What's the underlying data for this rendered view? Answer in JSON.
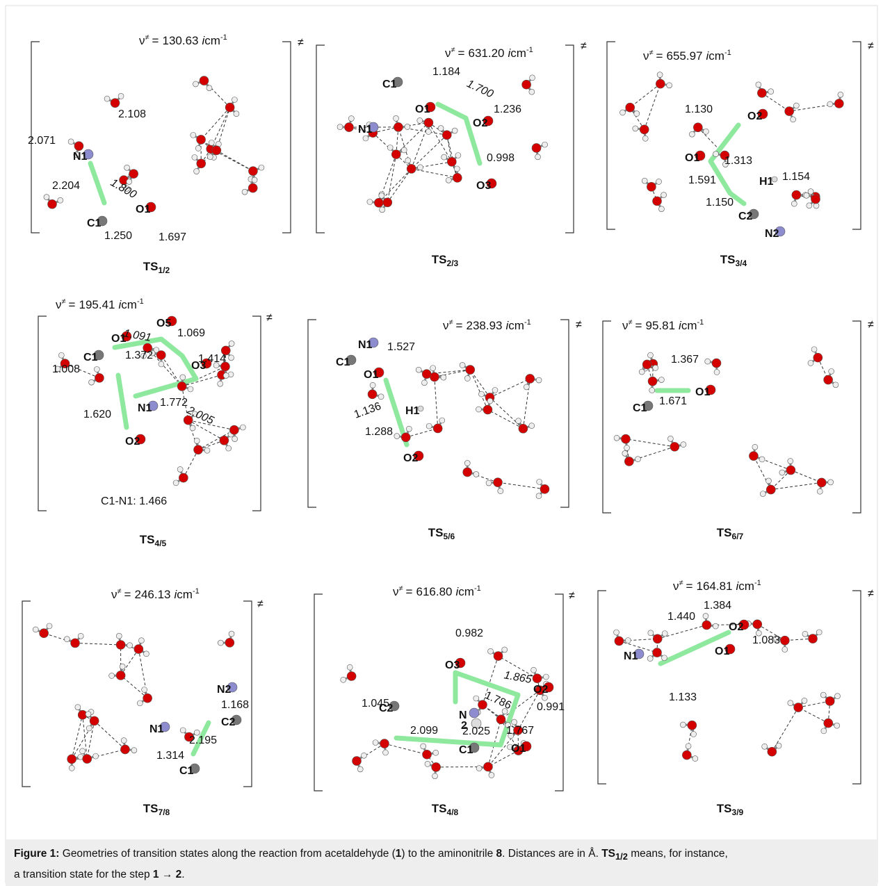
{
  "freq_symbol": "ν",
  "freq_sup": "≠",
  "freq_eq": "=",
  "freq_unit_i": "i",
  "freq_unit": "cm",
  "freq_exp": "-1",
  "ts_mark": "≠",
  "ts_prefix": "TS",
  "panels": [
    {
      "frequency": "130.63",
      "ts": "1/2",
      "atoms": [
        "N1",
        "O1",
        "C1"
      ],
      "distances": [
        "2.071",
        "2.108",
        "1.800",
        "2.204",
        "1.250",
        "1.697"
      ]
    },
    {
      "frequency": "631.20",
      "ts": "2/3",
      "atoms": [
        "C1",
        "O1",
        "N1",
        "O2",
        "O3"
      ],
      "distances": [
        "1.184",
        "1.700",
        "1.236",
        "0.998"
      ]
    },
    {
      "frequency": "655.97",
      "ts": "3/4",
      "atoms": [
        "O2",
        "O1",
        "H1",
        "C2",
        "N2"
      ],
      "distances": [
        "1.130",
        "1.313",
        "1.591",
        "1.154",
        "1.150"
      ]
    },
    {
      "frequency": "195.41",
      "ts": "4/5",
      "atoms": [
        "O5",
        "O1",
        "C1",
        "O3",
        "N1",
        "O2"
      ],
      "distances": [
        "1.091",
        "1.069",
        "1.372",
        "1.414",
        "1.008",
        "1.772",
        "2.005",
        "1.620",
        "C1-N1: 1.466"
      ]
    },
    {
      "frequency": "238.93",
      "ts": "5/6",
      "atoms": [
        "N1",
        "C1",
        "O1",
        "H1",
        "O2"
      ],
      "distances": [
        "1.527",
        "1.136",
        "1.288"
      ]
    },
    {
      "frequency": "95.81",
      "ts": "6/7",
      "atoms": [
        "O1",
        "C1"
      ],
      "distances": [
        "1.367",
        "1.671"
      ]
    },
    {
      "frequency": "246.13",
      "ts": "7/8",
      "atoms": [
        "N2",
        "C2",
        "N1",
        "C1"
      ],
      "distances": [
        "1.168",
        "2.195",
        "1.314"
      ]
    },
    {
      "frequency": "616.80",
      "ts": "4/8",
      "atoms": [
        "O3",
        "O2",
        "N",
        "2",
        "C2",
        "C1",
        "O1"
      ],
      "distances": [
        "0.982",
        "1.865",
        "1.786",
        "0.991",
        "1.045",
        "2.099",
        "2.025",
        "1.767"
      ]
    },
    {
      "frequency": "164.81",
      "ts": "3/9",
      "atoms": [
        "O2",
        "O1",
        "N1"
      ],
      "distances": [
        "1.384",
        "1.440",
        "1.083",
        "1.133"
      ]
    }
  ],
  "caption": [
    "Figure 1:",
    " Geometries of transition states along the reaction from acetaldehyde (",
    "1",
    ") to the aminonitrile ",
    "8",
    ". Distances are in Å. ",
    "TS",
    "1/2",
    " means, for instance,",
    "a transition state for the step ",
    "1",
    " → ",
    "2",
    "."
  ]
}
